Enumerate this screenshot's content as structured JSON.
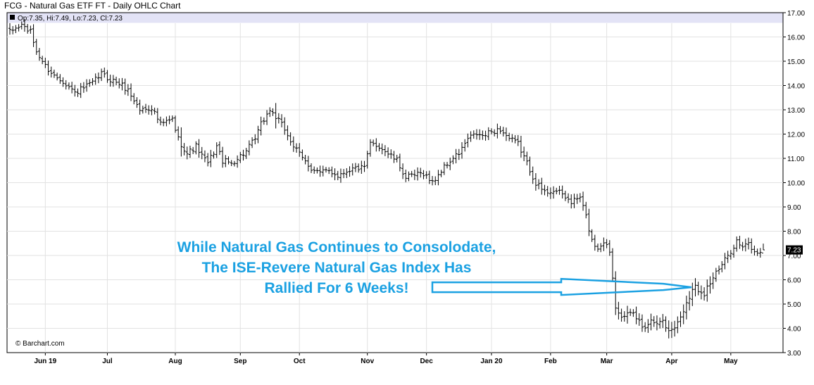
{
  "chart_data": {
    "type": "ohlc",
    "title": "FCG - Natural Gas ETF FT - Daily OHLC Chart",
    "readout": "Op:7.35, Hi:7.49, Lo:7.23, Cl:7.23",
    "last_price_label": "7.23",
    "credit": "© Barchart.com",
    "ylim": [
      3.0,
      17.0
    ],
    "y_ticks": [
      "3.00",
      "4.00",
      "5.00",
      "6.00",
      "7.00",
      "8.00",
      "9.00",
      "10.00",
      "11.00",
      "12.00",
      "13.00",
      "14.00",
      "15.00",
      "16.00",
      "17.00"
    ],
    "x_ticks": [
      {
        "label": "Jun 19",
        "index": 12
      },
      {
        "label": "Jul",
        "index": 33
      },
      {
        "label": "Aug",
        "index": 56
      },
      {
        "label": "Sep",
        "index": 78
      },
      {
        "label": "Oct",
        "index": 98
      },
      {
        "label": "Nov",
        "index": 121
      },
      {
        "label": "Dec",
        "index": 141
      },
      {
        "label": "Jan 20",
        "index": 163
      },
      {
        "label": "Feb",
        "index": 183
      },
      {
        "label": "Mar",
        "index": 202
      },
      {
        "label": "Apr",
        "index": 224
      },
      {
        "label": "May",
        "index": 244
      }
    ],
    "n_bars": 256,
    "close_anchors": [
      [
        0,
        16.2
      ],
      [
        4,
        16.5
      ],
      [
        7,
        16.2
      ],
      [
        9,
        15.4
      ],
      [
        12,
        14.8
      ],
      [
        15,
        14.4
      ],
      [
        18,
        14.2
      ],
      [
        22,
        13.7
      ],
      [
        25,
        13.9
      ],
      [
        28,
        14.1
      ],
      [
        31,
        14.5
      ],
      [
        33,
        14.3
      ],
      [
        37,
        14.1
      ],
      [
        40,
        13.8
      ],
      [
        44,
        13.0
      ],
      [
        48,
        13.1
      ],
      [
        51,
        12.4
      ],
      [
        55,
        12.6
      ],
      [
        57,
        11.8
      ],
      [
        60,
        11.2
      ],
      [
        63,
        11.5
      ],
      [
        65,
        11.1
      ],
      [
        67,
        10.8
      ],
      [
        70,
        11.5
      ],
      [
        72,
        10.9
      ],
      [
        75,
        10.8
      ],
      [
        77,
        11.0
      ],
      [
        80,
        11.3
      ],
      [
        83,
        11.8
      ],
      [
        85,
        12.4
      ],
      [
        88,
        13.0
      ],
      [
        90,
        12.7
      ],
      [
        93,
        12.2
      ],
      [
        96,
        11.5
      ],
      [
        99,
        11.0
      ],
      [
        102,
        10.6
      ],
      [
        105,
        10.4
      ],
      [
        108,
        10.5
      ],
      [
        111,
        10.3
      ],
      [
        114,
        10.5
      ],
      [
        117,
        10.6
      ],
      [
        120,
        10.6
      ],
      [
        122,
        11.6
      ],
      [
        125,
        11.5
      ],
      [
        128,
        11.2
      ],
      [
        131,
        10.9
      ],
      [
        134,
        10.2
      ],
      [
        137,
        10.3
      ],
      [
        140,
        10.4
      ],
      [
        143,
        10.0
      ],
      [
        146,
        10.5
      ],
      [
        149,
        10.9
      ],
      [
        152,
        11.2
      ],
      [
        155,
        11.8
      ],
      [
        158,
        12.0
      ],
      [
        160,
        11.9
      ],
      [
        163,
        12.1
      ],
      [
        166,
        12.2
      ],
      [
        169,
        11.8
      ],
      [
        172,
        11.6
      ],
      [
        175,
        10.8
      ],
      [
        178,
        10.0
      ],
      [
        181,
        9.6
      ],
      [
        184,
        9.7
      ],
      [
        187,
        9.5
      ],
      [
        190,
        9.2
      ],
      [
        193,
        9.4
      ],
      [
        195,
        8.6
      ],
      [
        197,
        7.6
      ],
      [
        199,
        7.3
      ],
      [
        201,
        7.6
      ],
      [
        203,
        7.2
      ],
      [
        205,
        5.0
      ],
      [
        208,
        4.4
      ],
      [
        211,
        4.6
      ],
      [
        214,
        4.1
      ],
      [
        217,
        4.3
      ],
      [
        220,
        4.4
      ],
      [
        223,
        3.9
      ],
      [
        226,
        4.2
      ],
      [
        228,
        4.8
      ],
      [
        230,
        5.4
      ],
      [
        232,
        5.7
      ],
      [
        235,
        5.5
      ],
      [
        238,
        6.1
      ],
      [
        241,
        6.6
      ],
      [
        244,
        7.2
      ],
      [
        246,
        7.6
      ],
      [
        248,
        7.3
      ],
      [
        250,
        7.5
      ],
      [
        252,
        7.1
      ],
      [
        255,
        7.23
      ]
    ],
    "annotation": {
      "lines": [
        "While Natural Gas Continues to Consolodate,",
        "The ISE-Revere Natural Gas Index Has",
        "Rallied For 6 Weeks!"
      ],
      "color": "#1ba1e2",
      "arrow_target_value": 5.75
    },
    "colors": {
      "bar": "#000000",
      "header_band": "#e3e3f6",
      "grid": "#e2e2e2",
      "annotation": "#1ba1e2",
      "last_label_bg": "#000000",
      "last_label_text": "#ffffff"
    },
    "grid": true,
    "axis_side": "right"
  }
}
